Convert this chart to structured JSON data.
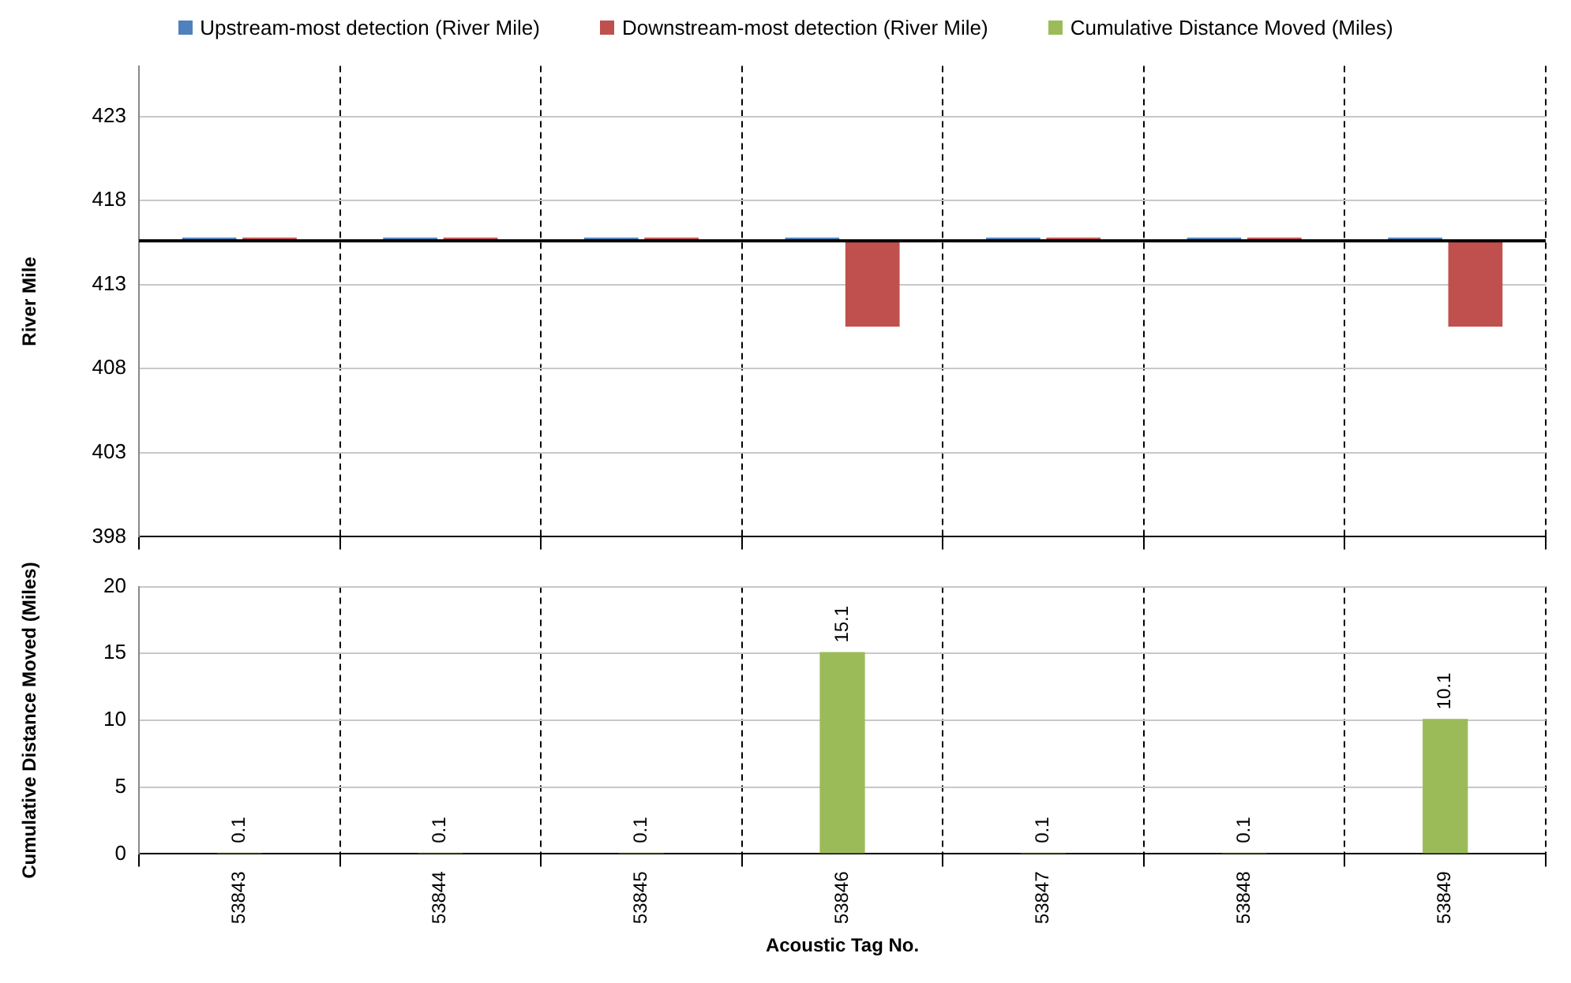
{
  "chart_data": [
    {
      "type": "bar",
      "ylabel": "River Mile",
      "categories": [
        "53843",
        "53844",
        "53845",
        "53846",
        "53847",
        "53848",
        "53849"
      ],
      "series": [
        {
          "name": "Upstream-most detection (River Mile)",
          "color": "#4f81bd",
          "base": [
            415.6,
            415.6,
            415.6,
            415.6,
            415.6,
            415.6,
            415.6
          ],
          "values": [
            0,
            0,
            0,
            0,
            0,
            0,
            0
          ]
        },
        {
          "name": "Downstream-most detection (River Mile)",
          "color": "#c0504d",
          "base": [
            415.6,
            415.6,
            415.6,
            415.6,
            415.6,
            415.6,
            415.6
          ],
          "values": [
            0,
            0,
            0,
            -5.1,
            0,
            0,
            -5.1
          ]
        }
      ],
      "ylim": [
        398,
        426
      ],
      "yticks": [
        398,
        403,
        408,
        413,
        418,
        423
      ],
      "ref_lines": [
        {
          "axis": "y",
          "value": 415.6,
          "color": "#000000"
        }
      ],
      "grid": true,
      "legend": "top",
      "tick_labels": "y"
    },
    {
      "type": "bar",
      "xlabel": "Acoustic Tag No.",
      "ylabel": "Cumulative Distance Moved (Miles)",
      "categories": [
        "53843",
        "53844",
        "53845",
        "53846",
        "53847",
        "53848",
        "53849"
      ],
      "series": [
        {
          "name": "Cumulative Distance Moved (Miles)",
          "color": "#9bbb59",
          "values": [
            0.1,
            0.1,
            0.1,
            15.1,
            0.1,
            0.1,
            10.1
          ]
        }
      ],
      "ylim": [
        0,
        20
      ],
      "yticks": [
        0,
        5,
        10,
        15,
        20
      ],
      "grid": true,
      "legend": "top",
      "data_labels": true
    }
  ]
}
